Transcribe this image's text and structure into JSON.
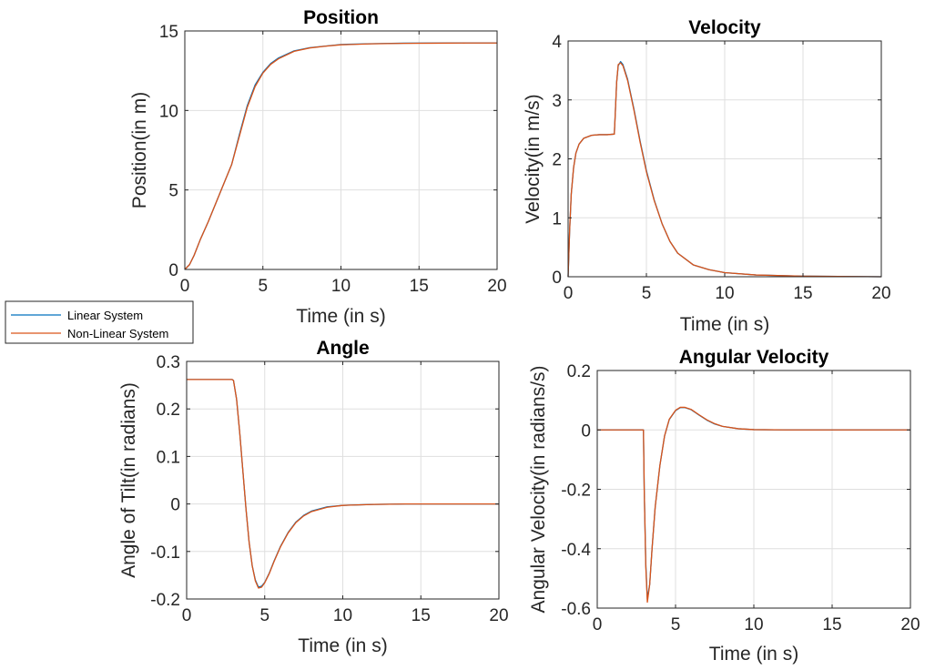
{
  "legend": {
    "entries": [
      {
        "label": "Linear System",
        "color": "#0072BD"
      },
      {
        "label": "Non-Linear System",
        "color": "#D95319"
      }
    ]
  },
  "chart_data": [
    {
      "type": "line",
      "title": "Position",
      "xlabel": "Time (in s)",
      "ylabel": "Position(in m)",
      "xlim": [
        0,
        20
      ],
      "ylim": [
        0,
        15
      ],
      "xticks": [
        0,
        5,
        10,
        15,
        20
      ],
      "yticks": [
        0,
        5,
        10,
        15
      ],
      "grid": true,
      "series": [
        {
          "name": "Linear System",
          "color": "#0072BD",
          "x": [
            0,
            0.3,
            0.6,
            1,
            1.5,
            2,
            2.5,
            3,
            3.5,
            4,
            4.5,
            5,
            5.5,
            6,
            7,
            8,
            9,
            10,
            12,
            14,
            16,
            18,
            20
          ],
          "y": [
            0,
            0.3,
            0.9,
            1.9,
            3.0,
            4.2,
            5.4,
            6.6,
            8.5,
            10.3,
            11.6,
            12.4,
            12.95,
            13.3,
            13.75,
            13.95,
            14.05,
            14.15,
            14.2,
            14.23,
            14.24,
            14.25,
            14.25
          ]
        },
        {
          "name": "Non-Linear System",
          "color": "#D95319",
          "x": [
            0,
            0.3,
            0.6,
            1,
            1.5,
            2,
            2.5,
            3,
            3.5,
            4,
            4.5,
            5,
            5.5,
            6,
            7,
            8,
            9,
            10,
            12,
            14,
            16,
            18,
            20
          ],
          "y": [
            0,
            0.3,
            0.9,
            1.9,
            3.0,
            4.2,
            5.4,
            6.6,
            8.4,
            10.2,
            11.5,
            12.35,
            12.9,
            13.25,
            13.72,
            13.93,
            14.04,
            14.13,
            14.19,
            14.22,
            14.23,
            14.24,
            14.24
          ]
        }
      ]
    },
    {
      "type": "line",
      "title": "Velocity",
      "xlabel": "Time (in s)",
      "ylabel": "Velocity(in m/s)",
      "xlim": [
        0,
        20
      ],
      "ylim": [
        0,
        4
      ],
      "xticks": [
        0,
        5,
        10,
        15,
        20
      ],
      "yticks": [
        0,
        1,
        2,
        3,
        4
      ],
      "grid": true,
      "series": [
        {
          "name": "Linear System",
          "color": "#0072BD",
          "x": [
            0,
            0.1,
            0.2,
            0.35,
            0.5,
            0.7,
            1,
            1.5,
            2,
            2.5,
            2.95,
            3.0,
            3.1,
            3.2,
            3.35,
            3.5,
            3.8,
            4.2,
            4.6,
            5,
            5.5,
            6,
            6.5,
            7,
            8,
            9,
            10,
            12,
            15,
            20
          ],
          "y": [
            0,
            0.8,
            1.4,
            1.85,
            2.1,
            2.25,
            2.35,
            2.4,
            2.41,
            2.41,
            2.42,
            2.7,
            3.3,
            3.58,
            3.65,
            3.6,
            3.35,
            2.85,
            2.3,
            1.8,
            1.3,
            0.9,
            0.6,
            0.4,
            0.2,
            0.12,
            0.07,
            0.03,
            0.01,
            0
          ]
        },
        {
          "name": "Non-Linear System",
          "color": "#D95319",
          "x": [
            0,
            0.1,
            0.2,
            0.35,
            0.5,
            0.7,
            1,
            1.5,
            2,
            2.5,
            2.95,
            3.0,
            3.1,
            3.2,
            3.35,
            3.5,
            3.8,
            4.2,
            4.6,
            5,
            5.5,
            6,
            6.5,
            7,
            8,
            9,
            10,
            12,
            15,
            20
          ],
          "y": [
            0,
            0.8,
            1.4,
            1.85,
            2.1,
            2.25,
            2.35,
            2.4,
            2.41,
            2.41,
            2.42,
            2.7,
            3.3,
            3.6,
            3.63,
            3.58,
            3.33,
            2.83,
            2.28,
            1.78,
            1.29,
            0.9,
            0.6,
            0.4,
            0.2,
            0.12,
            0.07,
            0.03,
            0.01,
            0
          ]
        }
      ]
    },
    {
      "type": "line",
      "title": "Angle",
      "xlabel": "Time (in s)",
      "ylabel": "Angle of Tilt(in radians)",
      "xlim": [
        0,
        20
      ],
      "ylim": [
        -0.2,
        0.3
      ],
      "xticks": [
        0,
        5,
        10,
        15,
        20
      ],
      "yticks": [
        -0.2,
        -0.1,
        0,
        0.1,
        0.2,
        0.3
      ],
      "grid": true,
      "series": [
        {
          "name": "Linear System",
          "color": "#0072BD",
          "x": [
            0,
            2.9,
            3.0,
            3.2,
            3.4,
            3.6,
            3.8,
            4.0,
            4.2,
            4.4,
            4.6,
            4.8,
            5.0,
            5.3,
            5.6,
            6.0,
            6.5,
            7.0,
            7.5,
            8.0,
            9.0,
            10,
            12,
            14,
            16,
            20
          ],
          "y": [
            0.262,
            0.262,
            0.26,
            0.22,
            0.15,
            0.07,
            -0.01,
            -0.08,
            -0.13,
            -0.16,
            -0.175,
            -0.173,
            -0.165,
            -0.145,
            -0.12,
            -0.09,
            -0.06,
            -0.038,
            -0.024,
            -0.015,
            -0.006,
            -0.003,
            -0.001,
            0,
            0,
            0
          ]
        },
        {
          "name": "Non-Linear System",
          "color": "#D95319",
          "x": [
            0,
            2.9,
            3.0,
            3.2,
            3.4,
            3.6,
            3.8,
            4.0,
            4.2,
            4.4,
            4.6,
            4.8,
            5.0,
            5.3,
            5.6,
            6.0,
            6.5,
            7.0,
            7.5,
            8.0,
            9.0,
            10,
            12,
            14,
            16,
            20
          ],
          "y": [
            0.262,
            0.262,
            0.26,
            0.22,
            0.15,
            0.07,
            -0.01,
            -0.08,
            -0.13,
            -0.162,
            -0.177,
            -0.175,
            -0.166,
            -0.146,
            -0.121,
            -0.091,
            -0.061,
            -0.039,
            -0.025,
            -0.016,
            -0.007,
            -0.003,
            -0.001,
            0,
            0,
            0
          ]
        }
      ]
    },
    {
      "type": "line",
      "title": "Angular Velocity",
      "xlabel": "Time (in s)",
      "ylabel": "Angular Velocity(in radians/s)",
      "xlim": [
        0,
        20
      ],
      "ylim": [
        -0.6,
        0.2
      ],
      "xticks": [
        0,
        5,
        10,
        15,
        20
      ],
      "yticks": [
        -0.6,
        -0.4,
        -0.2,
        0,
        0.2
      ],
      "grid": true,
      "series": [
        {
          "name": "Linear System",
          "color": "#0072BD",
          "x": [
            0,
            2.95,
            3.0,
            3.1,
            3.2,
            3.35,
            3.5,
            3.7,
            4.0,
            4.3,
            4.6,
            5.0,
            5.3,
            5.6,
            6.0,
            6.5,
            7.0,
            7.5,
            8.0,
            9.0,
            10,
            12,
            15,
            20
          ],
          "y": [
            0,
            0,
            -0.2,
            -0.45,
            -0.57,
            -0.52,
            -0.4,
            -0.26,
            -0.12,
            -0.02,
            0.035,
            0.065,
            0.075,
            0.075,
            0.068,
            0.05,
            0.033,
            0.02,
            0.012,
            0.004,
            0.001,
            0,
            0,
            0
          ]
        },
        {
          "name": "Non-Linear System",
          "color": "#D95319",
          "x": [
            0,
            2.95,
            3.0,
            3.1,
            3.2,
            3.35,
            3.5,
            3.7,
            4.0,
            4.3,
            4.6,
            5.0,
            5.3,
            5.6,
            6.0,
            6.5,
            7.0,
            7.5,
            8.0,
            9.0,
            10,
            12,
            15,
            20
          ],
          "y": [
            0,
            0,
            -0.2,
            -0.46,
            -0.58,
            -0.52,
            -0.4,
            -0.26,
            -0.12,
            -0.02,
            0.036,
            0.066,
            0.076,
            0.076,
            0.069,
            0.051,
            0.034,
            0.021,
            0.012,
            0.004,
            0.001,
            0,
            0,
            0
          ]
        }
      ]
    }
  ]
}
